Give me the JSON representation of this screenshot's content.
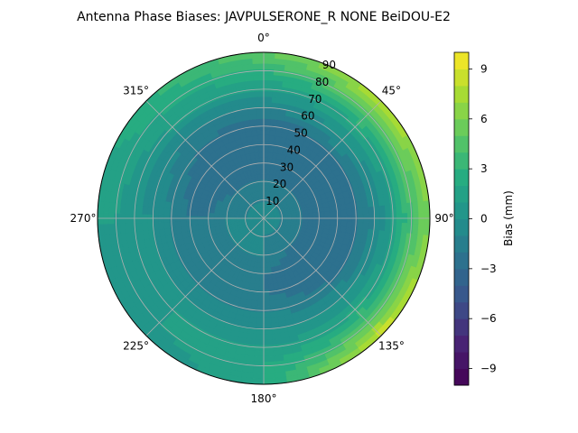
{
  "chart_data": {
    "type": "heatmap",
    "projection": "polar",
    "title": "Antenna Phase Biases: JAVPULSERONE_R  NONE BeiDOU-E2",
    "theta_direction": "clockwise",
    "theta_zero": "north",
    "theta_ticks": [
      {
        "value": 0,
        "label": "0°"
      },
      {
        "value": 45,
        "label": "45°"
      },
      {
        "value": 90,
        "label": "90°"
      },
      {
        "value": 135,
        "label": "135°"
      },
      {
        "value": 180,
        "label": "180°"
      },
      {
        "value": 225,
        "label": "225°"
      },
      {
        "value": 270,
        "label": "270°"
      },
      {
        "value": 315,
        "label": "315°"
      }
    ],
    "r_range": [
      0,
      90
    ],
    "r_ticks": [
      10,
      20,
      30,
      40,
      50,
      60,
      70,
      80,
      90
    ],
    "r_tick_labels": [
      "10",
      "20",
      "30",
      "40",
      "50",
      "60",
      "70",
      "80",
      "90"
    ],
    "grid": true,
    "colormap": "viridis",
    "colorbar": {
      "label": "Bias (mm)",
      "range": [
        -10,
        10
      ],
      "levels": 20,
      "ticks": [
        -9,
        -6,
        -3,
        0,
        3,
        6,
        9
      ],
      "tick_labels": [
        "−9",
        "−6",
        "−3",
        "0",
        "3",
        "6",
        "9"
      ]
    },
    "field": {
      "description_units": "Bias (mm) by zenith angle (deg) and azimuth (deg)",
      "zenith": [
        0,
        10,
        20,
        30,
        40,
        50,
        60,
        70,
        80,
        90
      ],
      "azimuth": [
        0,
        45,
        90,
        135,
        180,
        225,
        270,
        315
      ],
      "values_by_azimuth": [
        [
          0,
          -1,
          -2,
          -3,
          -3,
          -3,
          -1,
          1,
          3,
          5
        ],
        [
          0,
          -1,
          -2,
          -3,
          -3,
          -2,
          0,
          2,
          5,
          8
        ],
        [
          0,
          -1,
          -2,
          -3,
          -3,
          -2,
          -1,
          1,
          4,
          6
        ],
        [
          0,
          -1,
          -2,
          -3,
          -3,
          -2,
          0,
          2,
          5,
          9
        ],
        [
          0,
          -1,
          -1,
          -2,
          -2,
          -1,
          0,
          1,
          2,
          2
        ],
        [
          0,
          -1,
          -1,
          -2,
          -2,
          -1,
          0,
          1,
          1,
          0
        ],
        [
          0,
          -1,
          -1,
          -2,
          -2,
          -1,
          0,
          0,
          1,
          1
        ],
        [
          0,
          -1,
          -2,
          -3,
          -3,
          -2,
          -1,
          1,
          2,
          3
        ]
      ]
    }
  }
}
